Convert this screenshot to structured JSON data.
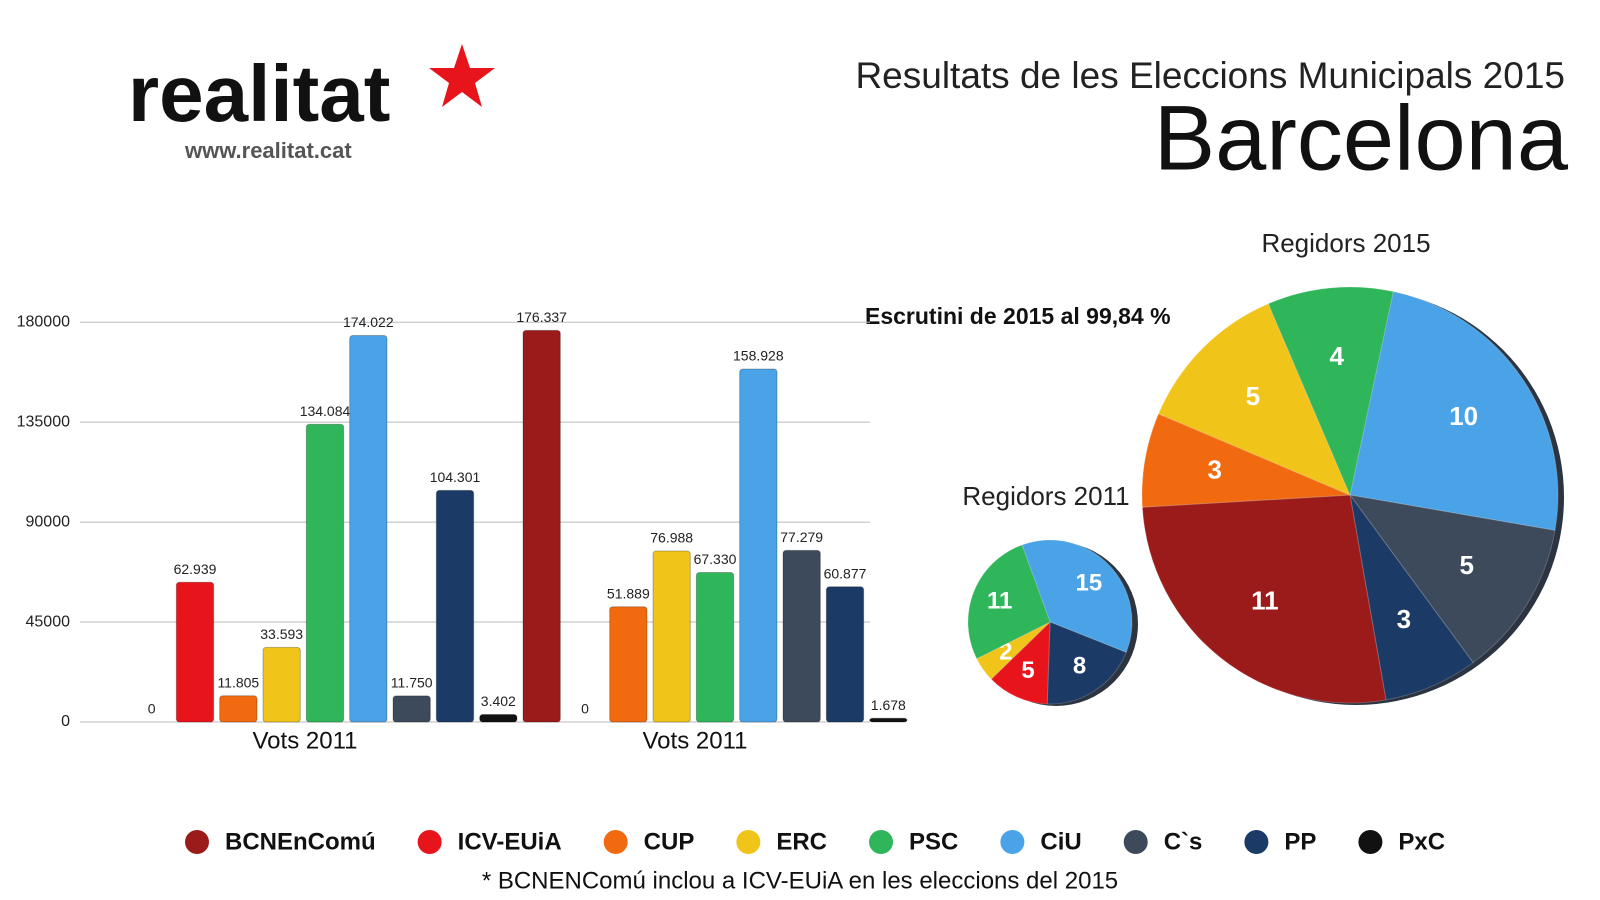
{
  "header": {
    "logo": "realitat",
    "url": "www.realitat.cat",
    "title": "Resultats de les Eleccions Municipals 2015",
    "subtitle": "Barcelona"
  },
  "annotation": "Escrutini de 2015 al 99,84 %",
  "footnote": "* BCNENComú inclou a ICV-EUiA en les eleccions del 2015",
  "chart_data": [
    {
      "type": "bar",
      "categories": [
        "Vots 2011",
        "Vots 2011"
      ],
      "ylim": [
        0,
        190000
      ],
      "yticks": [
        0,
        45000,
        90000,
        135000,
        180000
      ],
      "grid": true,
      "series": [
        {
          "name": "BCNEnComú",
          "color": "#9b1b1b",
          "values": [
            0,
            176337
          ],
          "value_labels": [
            "0",
            "176.337"
          ]
        },
        {
          "name": "ICV-EUiA",
          "color": "#e8141c",
          "values": [
            62939,
            0
          ],
          "value_labels": [
            "62.939",
            "0"
          ]
        },
        {
          "name": "CUP",
          "color": "#f26a0f",
          "values": [
            11805,
            51889
          ],
          "value_labels": [
            "11.805",
            "51.889"
          ]
        },
        {
          "name": "ERC",
          "color": "#f0c419",
          "values": [
            33593,
            76988
          ],
          "value_labels": [
            "33.593",
            "76.988"
          ]
        },
        {
          "name": "PSC",
          "color": "#2fb55a",
          "values": [
            134084,
            67330
          ],
          "value_labels": [
            "134.084",
            "67.330"
          ]
        },
        {
          "name": "CiU",
          "color": "#4aa3e6",
          "values": [
            174022,
            158928
          ],
          "value_labels": [
            "174.022",
            "158.928"
          ]
        },
        {
          "name": "C`s",
          "color": "#3d4a5c",
          "values": [
            11750,
            77279
          ],
          "value_labels": [
            "11.750",
            "77.279"
          ]
        },
        {
          "name": "PP",
          "color": "#1b3a66",
          "values": [
            104301,
            60877
          ],
          "value_labels": [
            "104.301",
            "60.877"
          ]
        },
        {
          "name": "PxC",
          "color": "#111111",
          "values": [
            3402,
            1678
          ],
          "value_labels": [
            "3.402",
            "1.678"
          ]
        }
      ]
    },
    {
      "type": "pie",
      "title": "Regidors 2011",
      "values": [
        15,
        8,
        5,
        2,
        11
      ],
      "colors": [
        "#4aa3e6",
        "#1b3a66",
        "#e8141c",
        "#f0c419",
        "#2fb55a"
      ]
    },
    {
      "type": "pie",
      "title": "Regidors 2015",
      "values": [
        10,
        5,
        3,
        11,
        3,
        5,
        4
      ],
      "colors": [
        "#4aa3e6",
        "#3d4a5c",
        "#1b3a66",
        "#9b1b1b",
        "#f26a0f",
        "#f0c419",
        "#2fb55a"
      ]
    }
  ]
}
